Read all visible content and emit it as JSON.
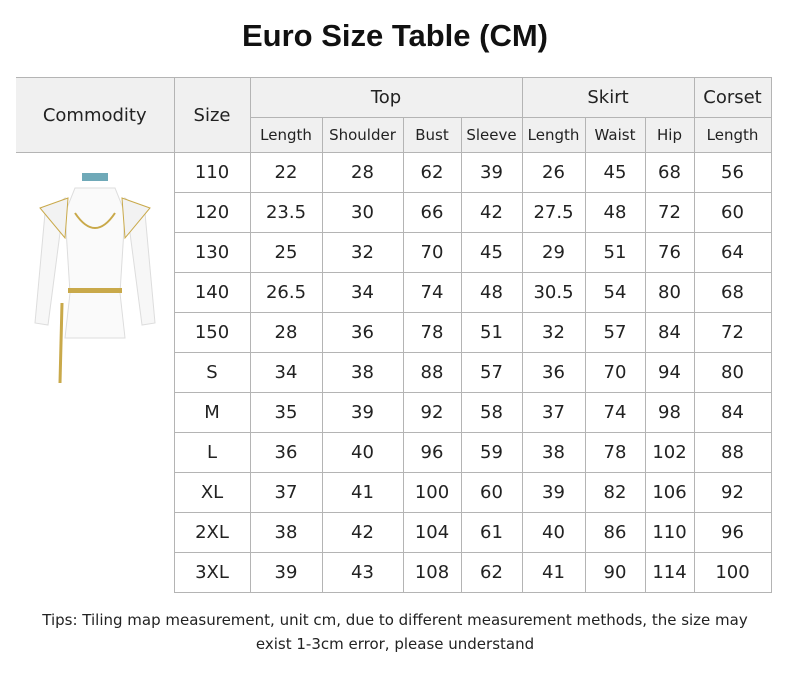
{
  "title": "Euro Size Table (CM)",
  "headers": {
    "commodity": "Commodity",
    "size": "Size",
    "top": "Top",
    "skirt": "Skirt",
    "corset": "Corset",
    "sub": [
      "Length",
      "Shoulder",
      "Bust",
      "Sleeve",
      "Length",
      "Waist",
      "Hip",
      "Length"
    ]
  },
  "rows": [
    [
      "110",
      "22",
      "28",
      "62",
      "39",
      "26",
      "45",
      "68",
      "56"
    ],
    [
      "120",
      "23.5",
      "30",
      "66",
      "42",
      "27.5",
      "48",
      "72",
      "60"
    ],
    [
      "130",
      "25",
      "32",
      "70",
      "45",
      "29",
      "51",
      "76",
      "64"
    ],
    [
      "140",
      "26.5",
      "34",
      "74",
      "48",
      "30.5",
      "54",
      "80",
      "68"
    ],
    [
      "150",
      "28",
      "36",
      "78",
      "51",
      "32",
      "57",
      "84",
      "72"
    ],
    [
      "S",
      "34",
      "38",
      "88",
      "57",
      "36",
      "70",
      "94",
      "80"
    ],
    [
      "M",
      "35",
      "39",
      "92",
      "58",
      "37",
      "74",
      "98",
      "84"
    ],
    [
      "L",
      "36",
      "40",
      "96",
      "59",
      "38",
      "78",
      "102",
      "88"
    ],
    [
      "XL",
      "37",
      "41",
      "100",
      "60",
      "39",
      "82",
      "106",
      "92"
    ],
    [
      "2XL",
      "38",
      "42",
      "104",
      "61",
      "40",
      "86",
      "110",
      "96"
    ],
    [
      "3XL",
      "39",
      "43",
      "108",
      "62",
      "41",
      "90",
      "114",
      "100"
    ]
  ],
  "tips": [
    "Tips: Tiling map measurement, unit cm, due to different measurement methods, the size may",
    "exist 1-3cm error, please understand"
  ]
}
